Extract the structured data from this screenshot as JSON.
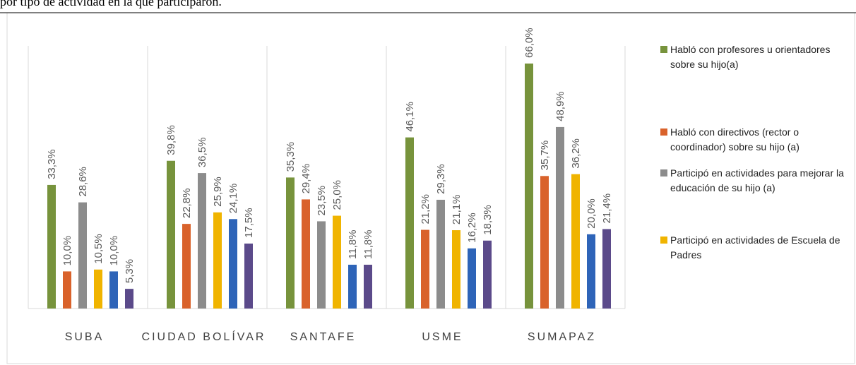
{
  "chart_data": {
    "type": "bar",
    "title": "por tipo de actividad en la que participaron.",
    "categories": [
      "SUBA",
      "CIUDAD BOLÍVAR",
      "SANTAFE",
      "USME",
      "SUMAPAZ"
    ],
    "series": [
      {
        "name": "Habló con profesores u orientadores sobre su hijo(a)",
        "color": "#77933c",
        "values": [
          33.3,
          39.8,
          35.3,
          46.1,
          66.0
        ],
        "value_labels": [
          "33,3%",
          "39,8%",
          "35,3%",
          "46,1%",
          "66,0%"
        ]
      },
      {
        "name": "Habló con directivos (rector o coordinador) sobre su hijo (a)",
        "color": "#d9622b",
        "values": [
          10.0,
          22.8,
          29.4,
          21.2,
          35.7
        ],
        "value_labels": [
          "10,0%",
          "22,8%",
          "29,4%",
          "21,2%",
          "35,7%"
        ]
      },
      {
        "name": "Participó en actividades para mejorar la educación de su hijo (a)",
        "color": "#8c8c8c",
        "values": [
          28.6,
          36.5,
          23.5,
          29.3,
          48.9
        ],
        "value_labels": [
          "28,6%",
          "36,5%",
          "23,5%",
          "29,3%",
          "48,9%"
        ]
      },
      {
        "name": "Participó en actividades de Escuela de Padres",
        "color": "#f0b400",
        "values": [
          10.5,
          25.9,
          25.0,
          21.1,
          36.2
        ],
        "value_labels": [
          "10,5%",
          "25,9%",
          "25,0%",
          "21,1%",
          "36,2%"
        ]
      },
      {
        "color": "#2e64b8",
        "values": [
          10.0,
          24.1,
          11.8,
          16.2,
          20.0
        ],
        "value_labels": [
          "10,0%",
          "24,1%",
          "11,8%",
          "16,2%",
          "20,0%"
        ]
      },
      {
        "color": "#5b4a8a",
        "values": [
          5.3,
          17.5,
          11.8,
          18.3,
          21.4
        ],
        "value_labels": [
          "5,3%",
          "17,5%",
          "11,8%",
          "18,3%",
          "21,4%"
        ]
      }
    ]
  }
}
